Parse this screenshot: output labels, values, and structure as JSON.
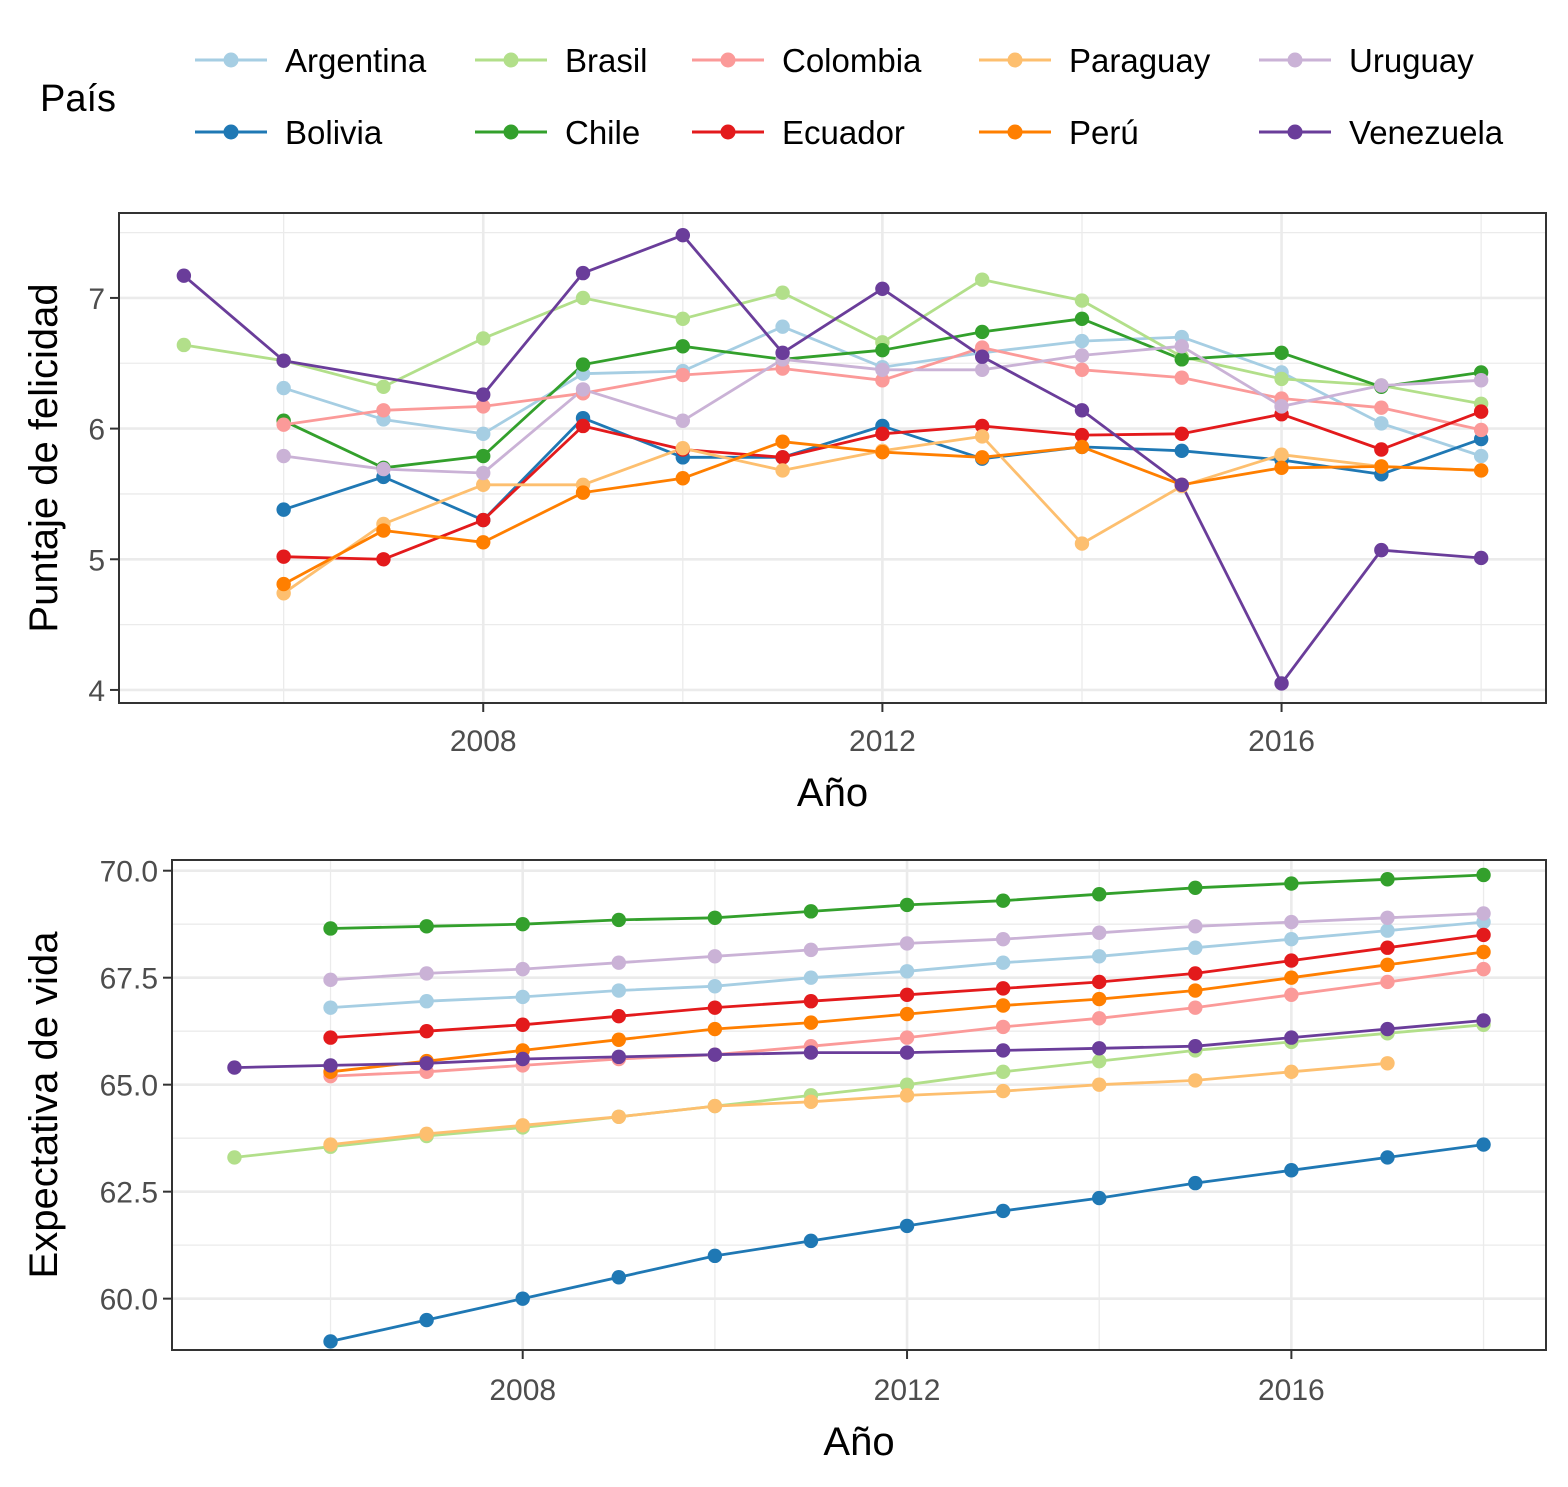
{
  "legend": {
    "title": "País",
    "items": [
      {
        "name": "Argentina",
        "color": "#A6CEE3"
      },
      {
        "name": "Brasil",
        "color": "#B2DF8A"
      },
      {
        "name": "Colombia",
        "color": "#FB9A99"
      },
      {
        "name": "Paraguay",
        "color": "#FDBF6F"
      },
      {
        "name": "Uruguay",
        "color": "#CAB2D6"
      },
      {
        "name": "Bolivia",
        "color": "#1F78B4"
      },
      {
        "name": "Chile",
        "color": "#33A02C"
      },
      {
        "name": "Ecuador",
        "color": "#E31A1C"
      },
      {
        "name": "Perú",
        "color": "#FF7F00"
      },
      {
        "name": "Venezuela",
        "color": "#6A3D9A"
      }
    ]
  },
  "chart_data": [
    {
      "type": "line",
      "xlabel": "Año",
      "ylabel": "Puntaje de felicidad",
      "xlim": [
        2004.35,
        2018.65
      ],
      "ylim": [
        3.9,
        7.65
      ],
      "xticks": [
        2008,
        2012,
        2016
      ],
      "xtick_labels": [
        "2008",
        "2012",
        "2016"
      ],
      "yticks": [
        4,
        5,
        6,
        7
      ],
      "ytick_labels": [
        "4",
        "5",
        "6",
        "7"
      ],
      "grid": true,
      "series": [
        {
          "name": "Argentina",
          "color": "#A6CEE3",
          "x": [
            2006,
            2007,
            2008,
            2009,
            2010,
            2011,
            2012,
            2013,
            2014,
            2015,
            2016,
            2017,
            2018
          ],
          "y": [
            6.31,
            6.07,
            5.96,
            6.42,
            6.44,
            6.78,
            6.47,
            6.58,
            6.67,
            6.7,
            6.43,
            6.04,
            5.79
          ]
        },
        {
          "name": "Bolivia",
          "color": "#1F78B4",
          "x": [
            2006,
            2007,
            2008,
            2009,
            2010,
            2011,
            2012,
            2013,
            2014,
            2015,
            2016,
            2017,
            2018
          ],
          "y": [
            5.38,
            5.63,
            5.3,
            6.08,
            5.78,
            5.78,
            6.02,
            5.77,
            5.86,
            5.83,
            5.76,
            5.65,
            5.92
          ]
        },
        {
          "name": "Brasil",
          "color": "#B2DF8A",
          "x": [
            2005,
            2006,
            2007,
            2008,
            2009,
            2010,
            2011,
            2012,
            2013,
            2014,
            2015,
            2016,
            2017,
            2018
          ],
          "y": [
            6.64,
            6.52,
            6.32,
            6.69,
            7.0,
            6.84,
            7.04,
            6.66,
            7.14,
            6.98,
            6.55,
            6.38,
            6.33,
            6.19
          ]
        },
        {
          "name": "Chile",
          "color": "#33A02C",
          "x": [
            2006,
            2007,
            2008,
            2009,
            2010,
            2011,
            2012,
            2013,
            2014,
            2015,
            2016,
            2017,
            2018
          ],
          "y": [
            6.06,
            5.7,
            5.79,
            6.49,
            6.63,
            6.53,
            6.6,
            6.74,
            6.84,
            6.53,
            6.58,
            6.32,
            6.43
          ]
        },
        {
          "name": "Colombia",
          "color": "#FB9A99",
          "x": [
            2006,
            2007,
            2008,
            2009,
            2010,
            2011,
            2012,
            2013,
            2014,
            2015,
            2016,
            2017,
            2018
          ],
          "y": [
            6.03,
            6.14,
            6.17,
            6.27,
            6.41,
            6.46,
            6.37,
            6.62,
            6.45,
            6.39,
            6.23,
            6.16,
            5.99
          ]
        },
        {
          "name": "Ecuador",
          "color": "#E31A1C",
          "x": [
            2006,
            2007,
            2008,
            2009,
            2010,
            2011,
            2012,
            2013,
            2014,
            2015,
            2016,
            2017,
            2018
          ],
          "y": [
            5.02,
            5.0,
            5.3,
            6.02,
            5.84,
            5.78,
            5.96,
            6.02,
            5.95,
            5.96,
            6.11,
            5.84,
            6.13
          ]
        },
        {
          "name": "Paraguay",
          "color": "#FDBF6F",
          "x": [
            2006,
            2007,
            2008,
            2009,
            2010,
            2011,
            2012,
            2013,
            2014,
            2015,
            2016,
            2017,
            2018
          ],
          "y": [
            4.74,
            5.27,
            5.57,
            5.57,
            5.85,
            5.68,
            5.83,
            5.94,
            5.12,
            5.56,
            5.8,
            5.71,
            5.68
          ]
        },
        {
          "name": "Perú",
          "color": "#FF7F00",
          "x": [
            2006,
            2007,
            2008,
            2009,
            2010,
            2011,
            2012,
            2013,
            2014,
            2015,
            2016,
            2017,
            2018
          ],
          "y": [
            4.81,
            5.22,
            5.13,
            5.51,
            5.62,
            5.9,
            5.82,
            5.78,
            5.86,
            5.57,
            5.7,
            5.71,
            5.68
          ]
        },
        {
          "name": "Uruguay",
          "color": "#CAB2D6",
          "x": [
            2006,
            2007,
            2008,
            2009,
            2010,
            2011,
            2012,
            2013,
            2014,
            2015,
            2016,
            2017,
            2018
          ],
          "y": [
            5.79,
            5.69,
            5.66,
            6.3,
            6.06,
            6.53,
            6.45,
            6.45,
            6.56,
            6.63,
            6.17,
            6.33,
            6.37
          ]
        },
        {
          "name": "Venezuela",
          "color": "#6A3D9A",
          "x": [
            2005,
            2006,
            2008,
            2009,
            2010,
            2011,
            2012,
            2013,
            2014,
            2015,
            2016,
            2017,
            2018
          ],
          "y": [
            7.17,
            6.52,
            6.26,
            7.19,
            7.48,
            6.58,
            7.07,
            6.55,
            6.14,
            5.57,
            4.05,
            5.07,
            5.01
          ]
        }
      ]
    },
    {
      "type": "line",
      "xlabel": "Año",
      "ylabel": "Expectativa de vida",
      "xlim": [
        2004.35,
        2018.65
      ],
      "ylim": [
        58.8,
        70.25
      ],
      "xticks": [
        2008,
        2012,
        2016
      ],
      "xtick_labels": [
        "2008",
        "2012",
        "2016"
      ],
      "yticks": [
        60.0,
        62.5,
        65.0,
        67.5,
        70.0
      ],
      "ytick_labels": [
        "60.0",
        "62.5",
        "65.0",
        "67.5",
        "70.0"
      ],
      "grid": true,
      "series": [
        {
          "name": "Argentina",
          "color": "#A6CEE3",
          "x": [
            2006,
            2007,
            2008,
            2009,
            2010,
            2011,
            2012,
            2013,
            2014,
            2015,
            2016,
            2017,
            2018
          ],
          "y": [
            66.8,
            66.95,
            67.05,
            67.2,
            67.3,
            67.5,
            67.65,
            67.85,
            68.0,
            68.2,
            68.4,
            68.6,
            68.8
          ]
        },
        {
          "name": "Bolivia",
          "color": "#1F78B4",
          "x": [
            2006,
            2007,
            2008,
            2009,
            2010,
            2011,
            2012,
            2013,
            2014,
            2015,
            2016,
            2017,
            2018
          ],
          "y": [
            59.0,
            59.5,
            60.0,
            60.5,
            61.0,
            61.35,
            61.7,
            62.05,
            62.35,
            62.7,
            63.0,
            63.3,
            63.6
          ]
        },
        {
          "name": "Brasil",
          "color": "#B2DF8A",
          "x": [
            2005,
            2006,
            2007,
            2008,
            2009,
            2010,
            2011,
            2012,
            2013,
            2014,
            2015,
            2016,
            2017,
            2018
          ],
          "y": [
            63.3,
            63.55,
            63.8,
            64.0,
            64.25,
            64.5,
            64.75,
            65.0,
            65.3,
            65.55,
            65.8,
            66.0,
            66.2,
            66.4
          ]
        },
        {
          "name": "Chile",
          "color": "#33A02C",
          "x": [
            2006,
            2007,
            2008,
            2009,
            2010,
            2011,
            2012,
            2013,
            2014,
            2015,
            2016,
            2017,
            2018
          ],
          "y": [
            68.65,
            68.7,
            68.75,
            68.85,
            68.9,
            69.05,
            69.2,
            69.3,
            69.45,
            69.6,
            69.7,
            69.8,
            69.9
          ]
        },
        {
          "name": "Colombia",
          "color": "#FB9A99",
          "x": [
            2006,
            2007,
            2008,
            2009,
            2010,
            2011,
            2012,
            2013,
            2014,
            2015,
            2016,
            2017,
            2018
          ],
          "y": [
            65.2,
            65.3,
            65.45,
            65.6,
            65.7,
            65.9,
            66.1,
            66.35,
            66.55,
            66.8,
            67.1,
            67.4,
            67.7
          ]
        },
        {
          "name": "Ecuador",
          "color": "#E31A1C",
          "x": [
            2006,
            2007,
            2008,
            2009,
            2010,
            2011,
            2012,
            2013,
            2014,
            2015,
            2016,
            2017,
            2018
          ],
          "y": [
            66.1,
            66.25,
            66.4,
            66.6,
            66.8,
            66.95,
            67.1,
            67.25,
            67.4,
            67.6,
            67.9,
            68.2,
            68.5
          ]
        },
        {
          "name": "Paraguay",
          "color": "#FDBF6F",
          "x": [
            2006,
            2007,
            2008,
            2009,
            2010,
            2011,
            2012,
            2013,
            2014,
            2015,
            2016,
            2017
          ],
          "y": [
            63.6,
            63.85,
            64.05,
            64.25,
            64.5,
            64.6,
            64.75,
            64.85,
            65.0,
            65.1,
            65.3,
            65.5
          ]
        },
        {
          "name": "Perú",
          "color": "#FF7F00",
          "x": [
            2006,
            2007,
            2008,
            2009,
            2010,
            2011,
            2012,
            2013,
            2014,
            2015,
            2016,
            2017,
            2018
          ],
          "y": [
            65.3,
            65.55,
            65.8,
            66.05,
            66.3,
            66.45,
            66.65,
            66.85,
            67.0,
            67.2,
            67.5,
            67.8,
            68.1
          ]
        },
        {
          "name": "Uruguay",
          "color": "#CAB2D6",
          "x": [
            2006,
            2007,
            2008,
            2009,
            2010,
            2011,
            2012,
            2013,
            2014,
            2015,
            2016,
            2017,
            2018
          ],
          "y": [
            67.45,
            67.6,
            67.7,
            67.85,
            68.0,
            68.15,
            68.3,
            68.4,
            68.55,
            68.7,
            68.8,
            68.9,
            69.0
          ]
        },
        {
          "name": "Venezuela",
          "color": "#6A3D9A",
          "x": [
            2005,
            2006,
            2007,
            2008,
            2009,
            2010,
            2011,
            2012,
            2013,
            2014,
            2015,
            2016,
            2017,
            2018
          ],
          "y": [
            65.4,
            65.45,
            65.5,
            65.6,
            65.65,
            65.7,
            65.75,
            65.75,
            65.8,
            65.85,
            65.9,
            66.1,
            66.3,
            66.5
          ]
        }
      ]
    }
  ]
}
